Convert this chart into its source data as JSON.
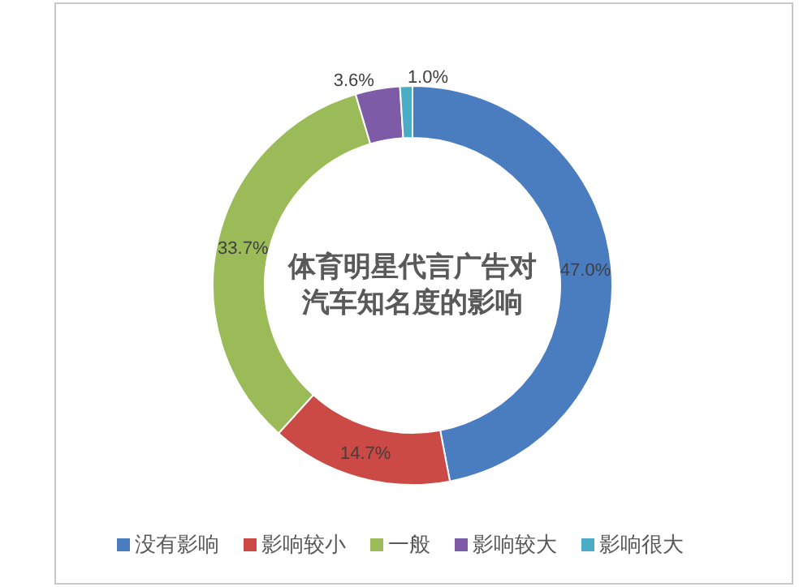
{
  "chart_data": {
    "type": "donut",
    "title": "体育明星代言广告对汽车知名度的影响",
    "categories": [
      "没有影响",
      "影响较小",
      "一般",
      "影响较大",
      "影响很大"
    ],
    "values": [
      47.0,
      14.7,
      33.7,
      3.6,
      1.0
    ],
    "colors": [
      "#4a7cc0",
      "#cc4a45",
      "#9bbb59",
      "#7d5ba6",
      "#4bacc6"
    ],
    "value_labels": [
      "47.0%",
      "14.7%",
      "33.7%",
      "3.6%",
      "1.0%"
    ],
    "legend": "bottom"
  }
}
